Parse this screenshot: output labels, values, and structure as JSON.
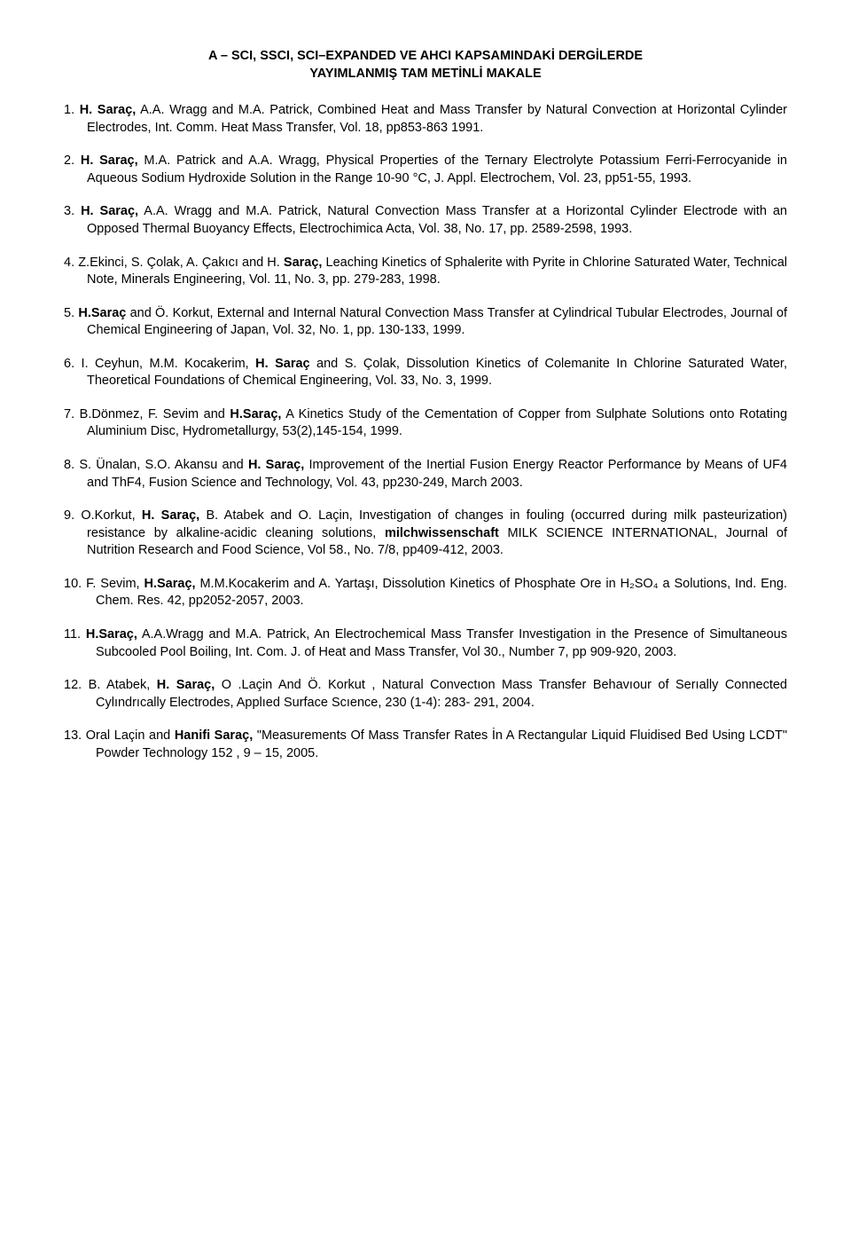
{
  "title_line1": "A – SCI, SSCI, SCI–EXPANDED VE AHCI KAPSAMINDAKİ DERGİLERDE",
  "title_line2": "YAYIMLANMIŞ TAM METİNLİ MAKALE",
  "items": [
    {
      "n": "1.",
      "pre": "",
      "b1": "H. Saraç,",
      "mid": " A.A. Wragg and M.A. Patrick, Combined Heat and Mass Transfer by Natural Convection at Horizontal Cylinder Electrodes, Int. Comm. Heat Mass Transfer, Vol. 18, pp853-863 1991.",
      "b2": "",
      "post": ""
    },
    {
      "n": "2.",
      "pre": "",
      "b1": "H. Saraç,",
      "mid": " M.A. Patrick and A.A. Wragg, Physical Properties of the Ternary Electrolyte Potassium Ferri-Ferrocyanide in Aqueous Sodium Hydroxide Solution in the Range 10-90 °C, J. Appl. Electrochem, Vol. 23, pp51-55, 1993.",
      "b2": "",
      "post": ""
    },
    {
      "n": "3.",
      "pre": "",
      "b1": "H. Saraç,",
      "mid": " A.A. Wragg and M.A. Patrick, Natural Convection Mass Transfer at a Horizontal Cylinder Electrode with an Opposed Thermal Buoyancy Effects, Electrochimica Acta, Vol. 38, No. 17, pp. 2589-2598, 1993.",
      "b2": "",
      "post": ""
    },
    {
      "n": "4.",
      "pre": "Z.Ekinci, S. Çolak,  A. Çakıcı and H. ",
      "b1": "Saraç,",
      "mid": " Leaching Kinetics of Sphalerite with Pyrite in Chlorine Saturated Water, Technical Note, Minerals Engineering, Vol. 11, No. 3, pp. 279-283, 1998.",
      "b2": "",
      "post": ""
    },
    {
      "n": "5.",
      "pre": "",
      "b1": "H.Saraç",
      "mid": " and Ö. Korkut, External and Internal Natural  Convection Mass Transfer at Cylindrical Tubular Electrodes, Journal of Chemical Engineering of Japan, Vol. 32, No. 1, pp. 130-133, 1999.",
      "b2": "",
      "post": ""
    },
    {
      "n": "6.",
      "pre": "I. Ceyhun,  M.M. Kocakerim,  ",
      "b1": "H. Saraç",
      "mid": " and S. Çolak, Dissolution Kinetics of Colemanite In Chlorine Saturated Water, Theoretical Foundations of Chemical Engineering, Vol. 33, No. 3,  1999.",
      "b2": "",
      "post": ""
    },
    {
      "n": "7.",
      "pre": "B.Dönmez, F. Sevim and ",
      "b1": "H.Saraç,",
      "mid": " A Kinetics Study of the Cementation of Copper from Sulphate Solutions onto Rotating Aluminium Disc, Hydrometallurgy, 53(2),145-154, 1999.",
      "b2": "",
      "post": ""
    },
    {
      "n": "8.",
      "pre": "S. Ünalan, S.O. Akansu and ",
      "b1": "H. Saraç,",
      "mid": " Improvement of the Inertial Fusion Energy Reactor Performance by Means of UF4 and ThF4, Fusion Science and Technology, Vol. 43, pp230-249, March 2003.",
      "b2": "",
      "post": ""
    },
    {
      "n": "9.",
      "pre": "O.Korkut, ",
      "b1": "H. Saraç,",
      "mid": " B. Atabek and O. Laçin, Investigation of changes in fouling (occurred during milk pasteurization) resistance by alkaline-acidic cleaning solutions, ",
      "b2": "milchwissenschaft",
      "post": " MILK SCIENCE INTERNATIONAL, Journal of Nutrition Research and Food Science, Vol 58., No. 7/8, pp409-412, 2003."
    },
    {
      "n": "10.",
      "pre": "F. Sevim, ",
      "b1": "H.Saraç,",
      "mid": " M.M.Kocakerim and A. Yartaşı, Dissolution Kinetics of Phosphate Ore in H₂SO₄ a Solutions, Ind. Eng. Chem. Res. 42, pp2052-2057, 2003.",
      "b2": "",
      "post": ""
    },
    {
      "n": "11.",
      "pre": "",
      "b1": "H.Saraç,",
      "mid": " A.A.Wragg and M.A. Patrick, An Electrochemical Mass Transfer Investigation in the Presence of Simultaneous Subcooled Pool Boiling, Int.  Com. J. of Heat and Mass Transfer, Vol 30., Number 7, pp 909-920, 2003.",
      "b2": "",
      "post": ""
    },
    {
      "n": "12.",
      "pre": "B. Atabek, ",
      "b1": "H. Saraç,",
      "mid": " O .Laçin And Ö. Korkut , Natural Convectıon Mass Transfer Behavıour of Serıally Connected Cylındrıcally Electrodes, Applıed Surface Scıence, 230 (1-4): 283- 291, 2004.",
      "b2": "",
      "post": ""
    },
    {
      "n": "13.",
      "pre": "Oral Laçin and ",
      "b1": "Hanifi Saraç,",
      "mid": " \"Measurements Of Mass Transfer Rates İn A Rectangular Liquid Fluidised Bed Using LCDT\" Powder Technology 152 , 9 – 15, 2005.",
      "b2": "",
      "post": ""
    }
  ]
}
